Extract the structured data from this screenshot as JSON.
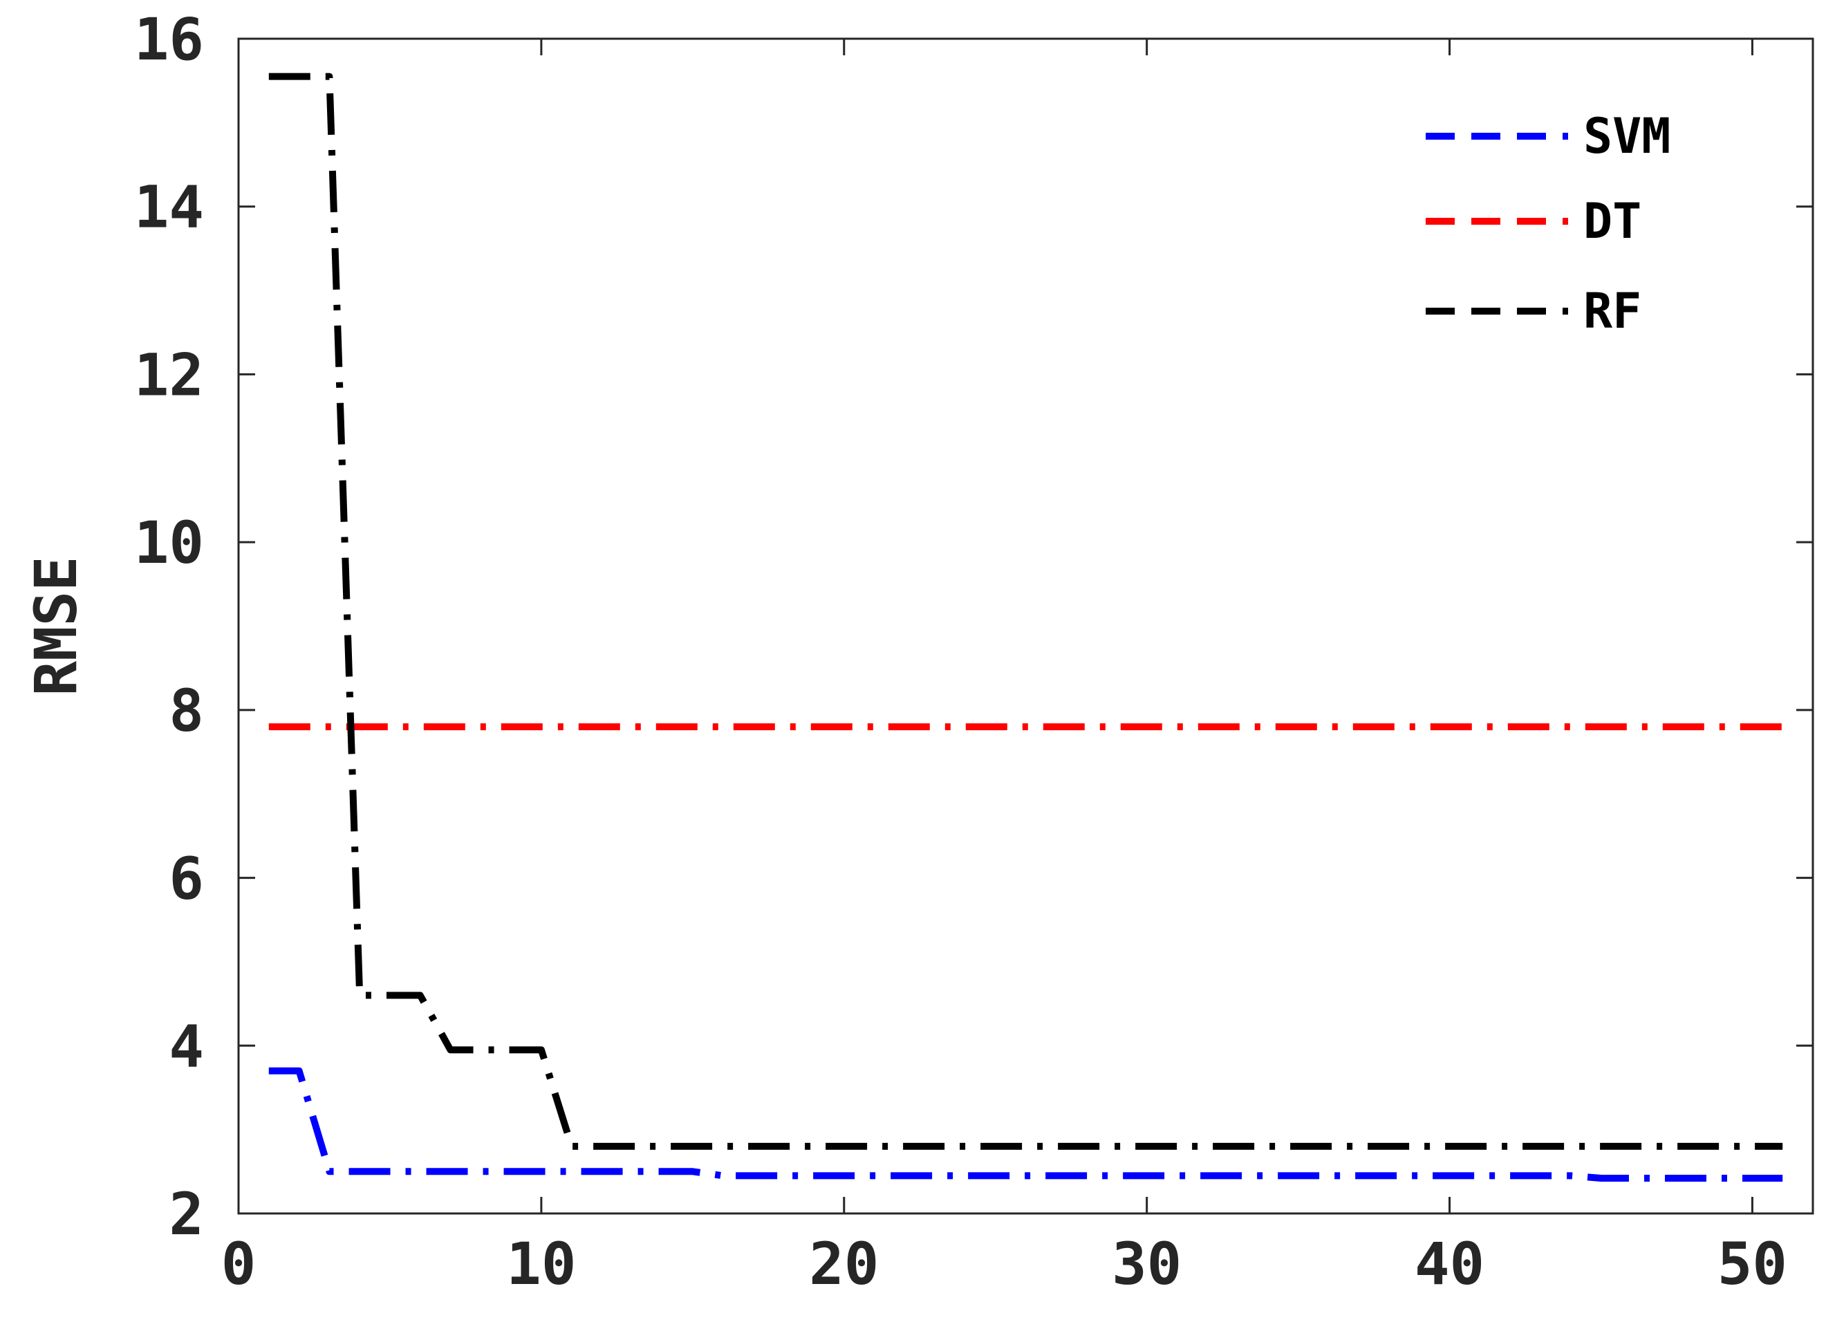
{
  "chart_data": {
    "type": "line",
    "title": "",
    "xlabel": "",
    "ylabel": "RMSE",
    "xlim": [
      0,
      52
    ],
    "ylim": [
      2,
      16
    ],
    "xticks": [
      0,
      10,
      20,
      30,
      40,
      50
    ],
    "yticks": [
      2,
      4,
      6,
      8,
      10,
      12,
      14,
      16
    ],
    "grid": false,
    "legend_position": "top-right",
    "series": [
      {
        "name": "SVM",
        "color": "#0000ff",
        "style": "dash-dot",
        "x": [
          1,
          2,
          3,
          4,
          5,
          6,
          7,
          8,
          9,
          10,
          11,
          12,
          13,
          14,
          15,
          16,
          17,
          18,
          19,
          20,
          21,
          22,
          23,
          24,
          25,
          26,
          27,
          28,
          29,
          30,
          31,
          32,
          33,
          34,
          35,
          36,
          37,
          38,
          39,
          40,
          41,
          42,
          43,
          44,
          45,
          46,
          47,
          48,
          49,
          50,
          51
        ],
        "y": [
          3.7,
          3.7,
          2.5,
          2.5,
          2.5,
          2.5,
          2.5,
          2.5,
          2.5,
          2.5,
          2.5,
          2.5,
          2.5,
          2.5,
          2.5,
          2.45,
          2.45,
          2.45,
          2.45,
          2.45,
          2.45,
          2.45,
          2.45,
          2.45,
          2.45,
          2.45,
          2.45,
          2.45,
          2.45,
          2.45,
          2.45,
          2.45,
          2.45,
          2.45,
          2.45,
          2.45,
          2.45,
          2.45,
          2.45,
          2.45,
          2.45,
          2.45,
          2.45,
          2.45,
          2.42,
          2.42,
          2.42,
          2.42,
          2.42,
          2.42,
          2.42
        ]
      },
      {
        "name": "DT",
        "color": "#ff0000",
        "style": "dash-dot",
        "x": [
          1,
          51
        ],
        "y": [
          7.8,
          7.8
        ]
      },
      {
        "name": "RF",
        "color": "#000000",
        "style": "dash-dot",
        "x": [
          1,
          2,
          3,
          4,
          5,
          6,
          7,
          8,
          9,
          10,
          11,
          12,
          13,
          14,
          15,
          16,
          17,
          18,
          19,
          20,
          21,
          22,
          23,
          24,
          25,
          26,
          27,
          28,
          29,
          30,
          31,
          32,
          33,
          34,
          35,
          36,
          37,
          38,
          39,
          40,
          41,
          42,
          43,
          44,
          45,
          46,
          47,
          48,
          49,
          50,
          51
        ],
        "y": [
          15.55,
          15.55,
          15.55,
          4.6,
          4.6,
          4.6,
          3.95,
          3.95,
          3.95,
          3.95,
          2.8,
          2.8,
          2.8,
          2.8,
          2.8,
          2.8,
          2.8,
          2.8,
          2.8,
          2.8,
          2.8,
          2.8,
          2.8,
          2.8,
          2.8,
          2.8,
          2.8,
          2.8,
          2.8,
          2.8,
          2.8,
          2.8,
          2.8,
          2.8,
          2.8,
          2.8,
          2.8,
          2.8,
          2.8,
          2.8,
          2.8,
          2.8,
          2.8,
          2.8,
          2.8,
          2.8,
          2.8,
          2.8,
          2.8,
          2.8,
          2.8
        ]
      }
    ]
  }
}
